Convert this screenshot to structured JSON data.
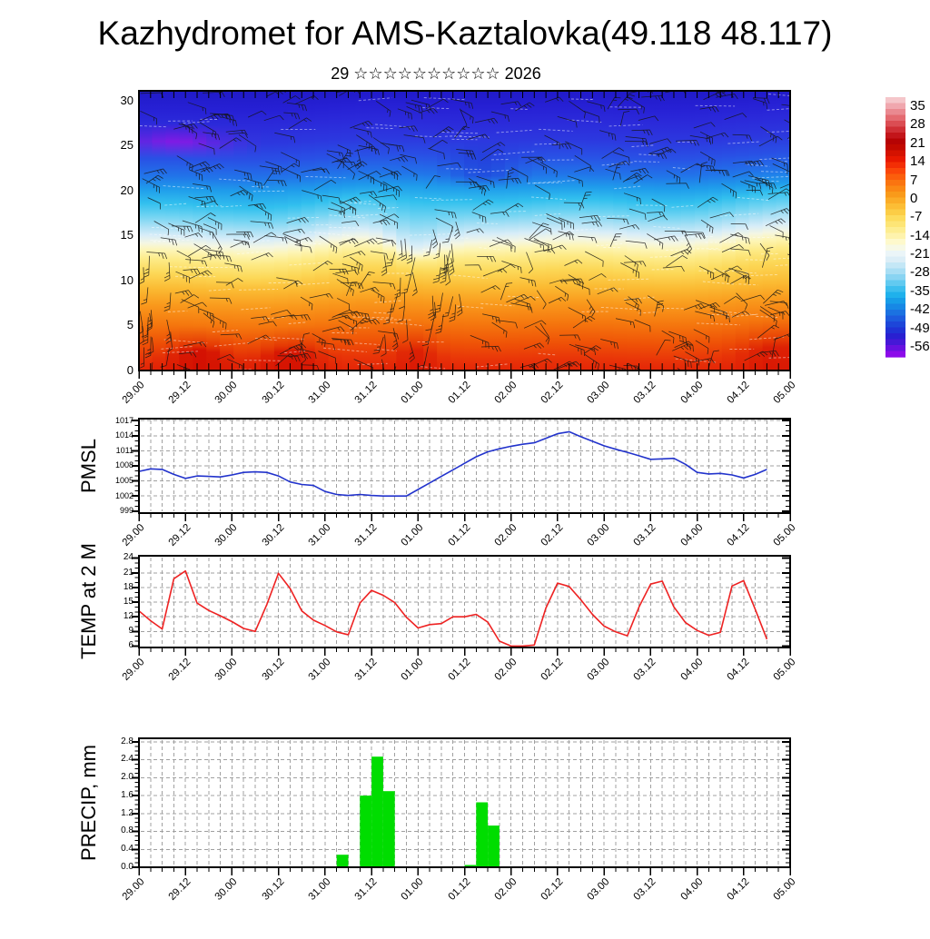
{
  "header": {
    "title": "Kazhydromet for AMS-Kaztalovka(49.118 48.117)",
    "subtitle": "29 ☆☆☆☆☆☆☆☆☆☆ 2026"
  },
  "time_axis": {
    "labels": [
      "29.00",
      "29.12",
      "30.00",
      "30.12",
      "31.00",
      "31.12",
      "01.00",
      "01.12",
      "02.00",
      "02.12",
      "03.00",
      "03.12",
      "04.00",
      "04.12",
      "05.00"
    ],
    "minor_step_hours": 3,
    "major_step_hours": 12
  },
  "colorbar": {
    "tick_labels": [
      "35",
      "28",
      "21",
      "14",
      "7",
      "0",
      "-7",
      "-14",
      "-21",
      "-28",
      "-35",
      "-42",
      "-49",
      "-56"
    ],
    "stops": [
      "#f5c6ca",
      "#ee9aa2",
      "#e56e74",
      "#d8444a",
      "#c61a20",
      "#b40000",
      "#cc0f00",
      "#e81800",
      "#f93908",
      "#fb5c0c",
      "#fa7b11",
      "#f99617",
      "#fbb02a",
      "#fcc83e",
      "#fddd5f",
      "#fdea83",
      "#fef3ab",
      "#fefbd8",
      "#eef6f8",
      "#d8edf7",
      "#b3e1f5",
      "#86d3f2",
      "#4cc4ef",
      "#1fb2ec",
      "#1495e7",
      "#1b76e2",
      "#1e55dd",
      "#1d37d6",
      "#2a1ed0",
      "#5714dc",
      "#8c0bea"
    ]
  },
  "chart_data": [
    {
      "type": "heatmap",
      "name": "temperature-wind-cross-section",
      "y_tick_labels": [
        "30",
        "25",
        "20",
        "15",
        "10",
        "5",
        "0"
      ],
      "y_range": [
        0,
        30
      ],
      "overlay": "wind-barbs",
      "colorbar_ticks": [
        35,
        28,
        21,
        14,
        7,
        0,
        -7,
        -14,
        -21,
        -28,
        -35,
        -42,
        -49,
        -56
      ],
      "approx_profile_levels": [
        0,
        5,
        10,
        15,
        20,
        25,
        30
      ],
      "approx_profile_temps": [
        28,
        17,
        8,
        -4,
        -20,
        -38,
        -50
      ]
    },
    {
      "type": "line",
      "name": "pmsl",
      "ylabel": "PMSL",
      "color": "#2233cc",
      "y_ticks": [
        999,
        1002,
        1005,
        1008,
        1011,
        1014,
        1017
      ],
      "start": "29.00",
      "step_hours": 3,
      "values": [
        1006.9,
        1007.4,
        1007.3,
        1006.3,
        1005.5,
        1006.0,
        1005.9,
        1005.8,
        1006.2,
        1006.7,
        1006.8,
        1006.7,
        1006.0,
        1004.8,
        1004.3,
        1004.1,
        1002.9,
        1002.3,
        1002.1,
        1002.3,
        1002.1,
        1002.0,
        1002.0,
        1002.0,
        1003.3,
        1004.6,
        1005.9,
        1007.2,
        1008.5,
        1009.8,
        1010.8,
        1011.4,
        1011.9,
        1012.3,
        1012.6,
        1013.5,
        1014.4,
        1014.8,
        1013.8,
        1012.9,
        1012.0,
        1011.3,
        1010.7,
        1010.0,
        1009.3,
        1009.4,
        1009.5,
        1008.3,
        1006.7,
        1006.4,
        1006.5,
        1006.2,
        1005.6,
        1006.3,
        1007.3
      ]
    },
    {
      "type": "line",
      "name": "temp-2m",
      "ylabel": "TEMP at 2 M",
      "color": "#ee2222",
      "y_ticks": [
        6,
        9,
        12,
        15,
        18,
        21,
        24
      ],
      "start": "29.00",
      "step_hours": 3,
      "values": [
        13.2,
        11.2,
        9.5,
        19.8,
        21.4,
        14.8,
        13.3,
        12.2,
        11.0,
        9.6,
        9.0,
        14.5,
        20.9,
        17.8,
        13.2,
        11.3,
        10.2,
        8.9,
        8.3,
        14.8,
        17.4,
        16.4,
        14.9,
        11.9,
        9.7,
        10.4,
        10.6,
        12.0,
        12.0,
        12.5,
        10.9,
        7.0,
        6.0,
        6.0,
        6.2,
        13.8,
        18.9,
        18.2,
        15.5,
        12.5,
        10.1,
        8.9,
        8.1,
        14.0,
        18.7,
        19.3,
        14.0,
        10.8,
        9.2,
        8.2,
        8.8,
        18.3,
        19.4,
        13.5,
        7.4
      ]
    },
    {
      "type": "bar",
      "name": "precip",
      "ylabel": "PRECIP, mm",
      "color": "#00dd00",
      "y_ticks": [
        0.0,
        0.4,
        0.8,
        1.2,
        1.6,
        2.0,
        2.4,
        2.8
      ],
      "step_hours": 3,
      "bars": [
        {
          "t": "31.03",
          "v": 0.28
        },
        {
          "t": "31.09",
          "v": 1.6
        },
        {
          "t": "31.12",
          "v": 2.47
        },
        {
          "t": "31.15",
          "v": 1.7
        },
        {
          "t": "01.03",
          "v": 0.02
        },
        {
          "t": "01.06",
          "v": 0.02
        },
        {
          "t": "01.12",
          "v": 0.05
        },
        {
          "t": "01.15",
          "v": 1.45
        },
        {
          "t": "01.18",
          "v": 0.93
        }
      ]
    }
  ]
}
